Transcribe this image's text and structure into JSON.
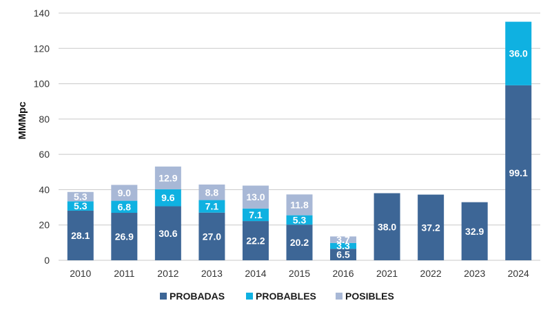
{
  "chart_data": {
    "type": "bar",
    "stacked": true,
    "categories": [
      "2010",
      "2011",
      "2012",
      "2013",
      "2014",
      "2015",
      "2016",
      "2021",
      "2022",
      "2023",
      "2024"
    ],
    "series": [
      {
        "name": "PROBADAS",
        "color": "#3d6696",
        "values": [
          28.1,
          26.9,
          30.6,
          27.0,
          22.2,
          20.2,
          6.5,
          38.0,
          37.2,
          32.9,
          99.1
        ],
        "labels": [
          "28.1",
          "26.9",
          "30.6",
          "27.0",
          "22.2",
          "20.2",
          "6.5",
          "38.0",
          "37.2",
          "32.9",
          "99.1"
        ]
      },
      {
        "name": "PROBABLES",
        "color": "#0fb1e1",
        "values": [
          5.3,
          6.8,
          9.6,
          7.1,
          7.1,
          5.3,
          3.3,
          0,
          0,
          0,
          36.0
        ],
        "labels": [
          "5.3",
          "6.8",
          "9.6",
          "7.1",
          "7.1",
          "5.3",
          "3.3",
          "",
          "",
          "",
          "36.0"
        ]
      },
      {
        "name": "POSIBLES",
        "color": "#a8b8d6",
        "values": [
          5.3,
          9.0,
          12.9,
          8.8,
          13.0,
          11.8,
          3.7,
          0,
          0,
          0,
          0
        ],
        "labels": [
          "5.3",
          "9.0",
          "12.9",
          "8.8",
          "13.0",
          "11.8",
          "3.7",
          "",
          "",
          "",
          ""
        ]
      }
    ],
    "ylabel": "MMMpc",
    "ylim": [
      0,
      140
    ],
    "yticks": [
      "0",
      "20",
      "40",
      "60",
      "80",
      "100",
      "120",
      "140"
    ],
    "grid": true,
    "legend": "bottom"
  }
}
